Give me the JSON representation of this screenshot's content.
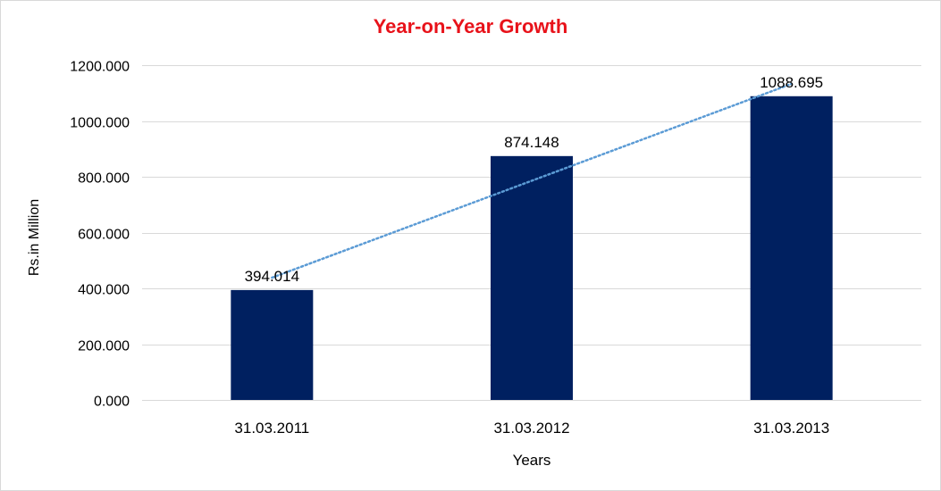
{
  "chart_data": {
    "type": "bar",
    "title": "Year-on-Year Growth",
    "xlabel": "Years",
    "ylabel": "Rs.in Million",
    "categories": [
      "31.03.2011",
      "31.03.2012",
      "31.03.2013"
    ],
    "values": [
      394.014,
      874.148,
      1088.695
    ],
    "data_labels": [
      "394.014",
      "874.148",
      "1088.695"
    ],
    "ylim": [
      0,
      1200
    ],
    "yticks": [
      0,
      200,
      400,
      600,
      800,
      1000,
      1200
    ],
    "ytick_labels": [
      "0.000",
      "200.000",
      "400.000",
      "600.000",
      "800.000",
      "1000.000",
      "1200.000"
    ],
    "grid": true,
    "trendline": "linear",
    "legend": "none",
    "colors": {
      "bar": "#002060",
      "trendline": "#5b9bd5",
      "title": "#e8121a",
      "grid": "#d9d9d9"
    }
  }
}
